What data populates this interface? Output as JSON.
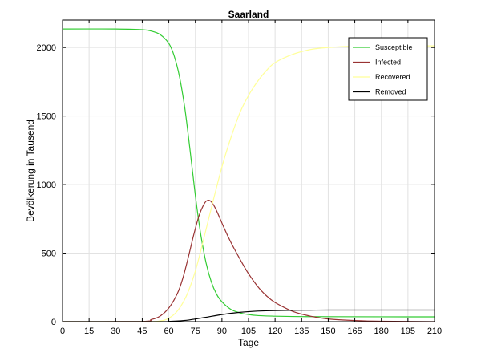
{
  "chart_data": {
    "type": "line",
    "title": "Saarland",
    "xlabel": "Tage",
    "ylabel": "Bevölkerung in Tausend",
    "xlim": [
      0,
      210
    ],
    "ylim": [
      0,
      2200
    ],
    "xticks": [
      0,
      15,
      30,
      45,
      60,
      75,
      90,
      105,
      120,
      135,
      150,
      165,
      180,
      195,
      210
    ],
    "yticks": [
      0,
      500,
      1000,
      1500,
      2000
    ],
    "grid": true,
    "legend_position": "top-right",
    "series": [
      {
        "name": "Susceptible",
        "color": "#33cc33",
        "x": [
          0,
          30,
          45,
          50,
          55,
          60,
          63,
          66,
          69,
          72,
          75,
          78,
          81,
          84,
          87,
          90,
          95,
          100,
          105,
          110,
          120,
          135,
          150,
          210
        ],
        "y": [
          2135,
          2135,
          2130,
          2120,
          2095,
          2030,
          1940,
          1790,
          1560,
          1250,
          920,
          640,
          430,
          290,
          200,
          145,
          90,
          65,
          52,
          45,
          40,
          37,
          36,
          35
        ]
      },
      {
        "name": "Infected",
        "color": "#993333",
        "x": [
          0,
          45,
          50,
          55,
          60,
          65,
          68,
          71,
          74,
          77,
          80,
          82,
          84,
          86,
          88,
          91,
          95,
          100,
          105,
          110,
          115,
          120,
          130,
          140,
          150,
          165,
          180,
          210
        ],
        "y": [
          0,
          2,
          15,
          40,
          100,
          210,
          320,
          470,
          630,
          770,
          860,
          885,
          875,
          835,
          780,
          690,
          580,
          460,
          350,
          260,
          190,
          140,
          75,
          40,
          20,
          8,
          3,
          0
        ]
      },
      {
        "name": "Recovered",
        "color": "#ffff99",
        "x": [
          0,
          45,
          55,
          60,
          65,
          70,
          75,
          80,
          85,
          90,
          95,
          100,
          105,
          110,
          115,
          120,
          130,
          140,
          150,
          165,
          180,
          210
        ],
        "y": [
          0,
          0,
          5,
          25,
          80,
          190,
          370,
          620,
          880,
          1130,
          1340,
          1520,
          1650,
          1750,
          1830,
          1890,
          1950,
          1985,
          2000,
          2010,
          2012,
          2012
        ]
      },
      {
        "name": "Removed",
        "color": "#000000",
        "x": [
          0,
          55,
          60,
          70,
          80,
          90,
          100,
          110,
          120,
          130,
          140,
          150,
          165,
          180,
          210
        ],
        "y": [
          0,
          0,
          2,
          10,
          30,
          52,
          68,
          77,
          81,
          83,
          84,
          85,
          85,
          85,
          85
        ]
      }
    ]
  }
}
